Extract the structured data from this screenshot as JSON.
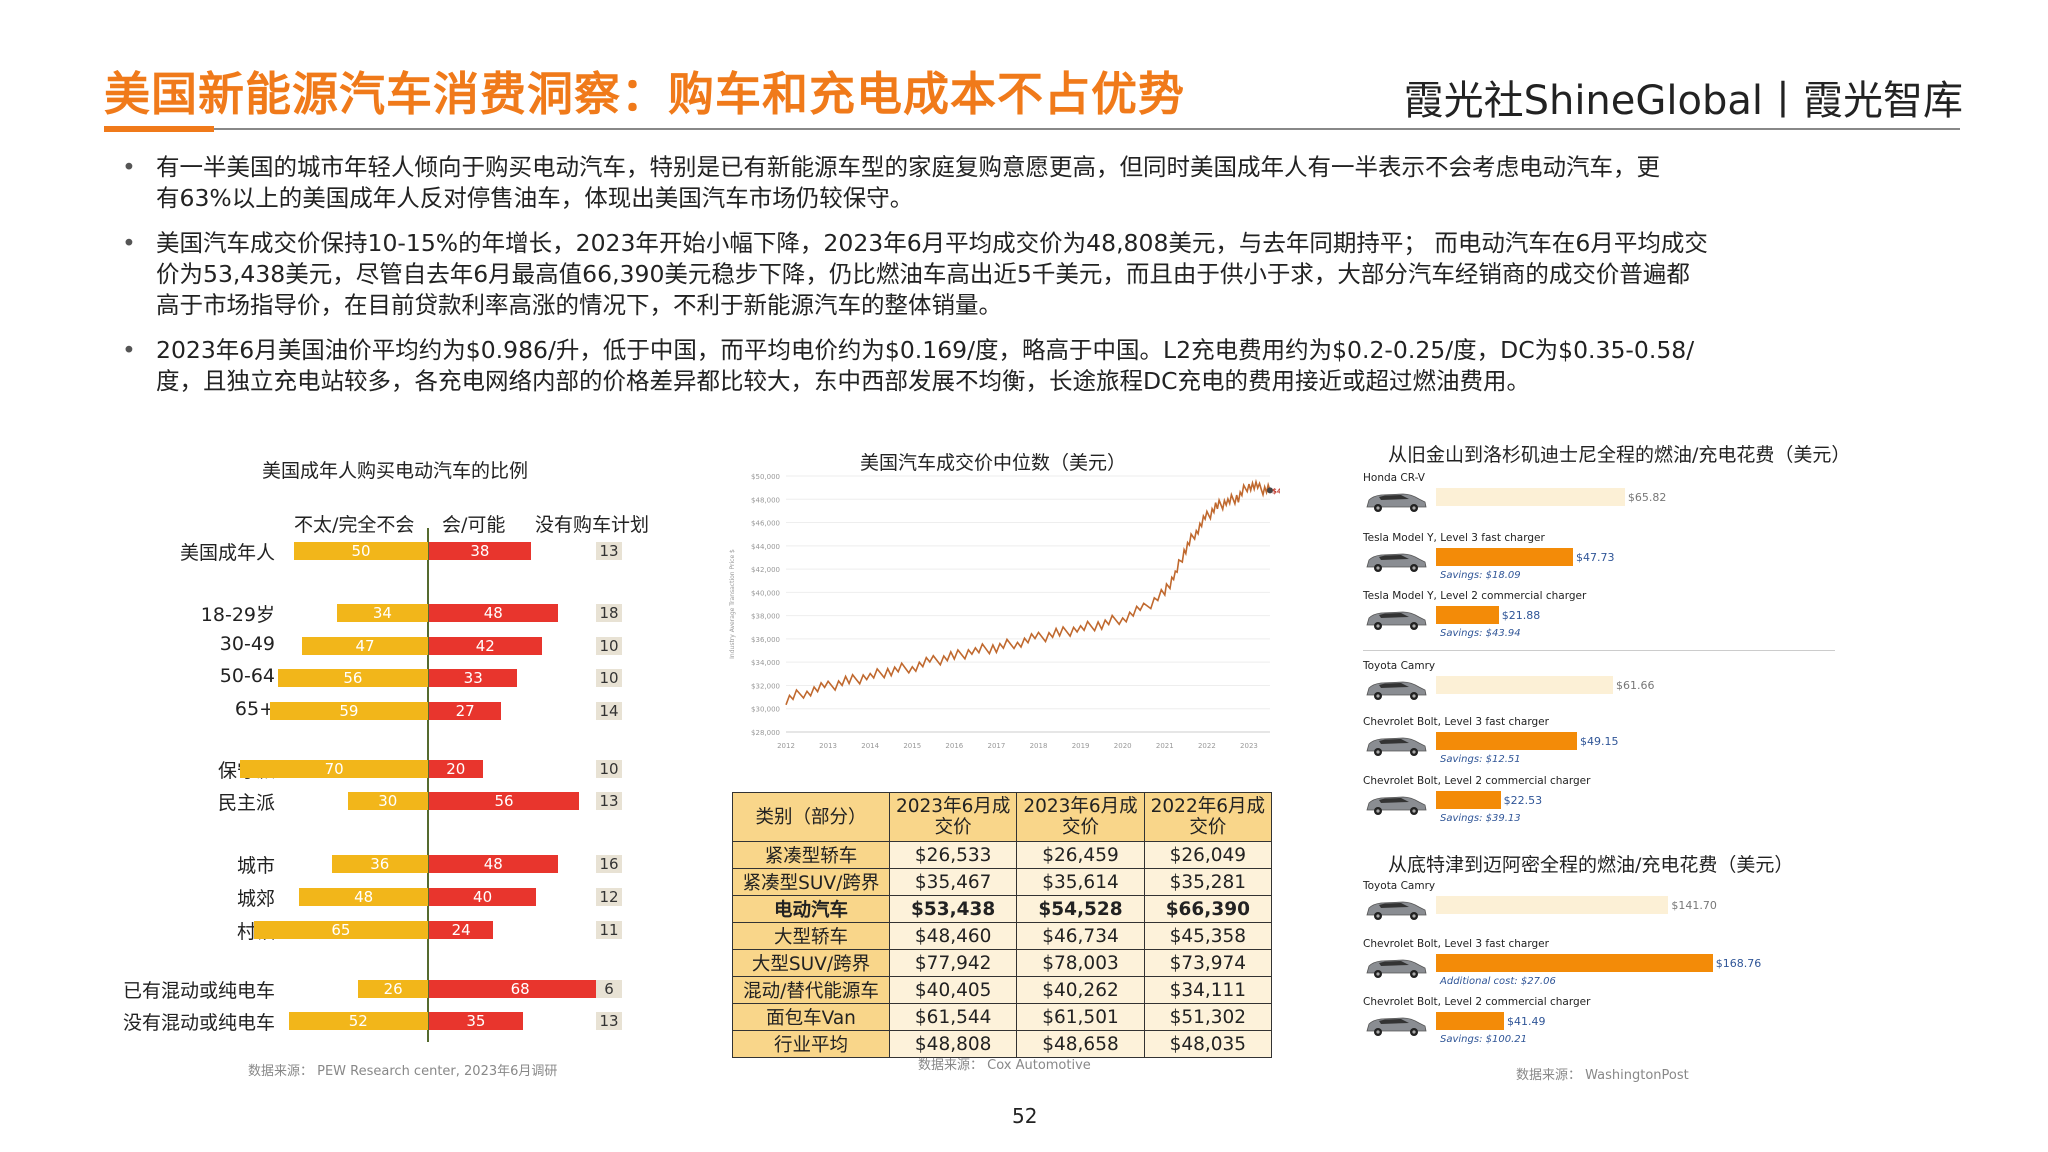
{
  "header": {
    "title": "美国新能源汽车消费洞察：购车和充电成本不占优势",
    "brand": "霞光社ShineGlobal丨霞光智库"
  },
  "bullets": [
    {
      "lines": [
        "有一半美国的城市年轻人倾向于购买电动汽车，特别是已有新能源车型的家庭复购意愿更高，但同时美国成年人有一半表示不会考虑电动汽车，更",
        "有63%以上的美国成年人反对停售油车，体现出美国汽车市场仍较保守。"
      ]
    },
    {
      "lines": [
        "美国汽车成交价保持10-15%的年增长，2023年开始小幅下降，2023年6月平均成交价为48,808美元，与去年同期持平； 而电动汽车在6月平均成交",
        "价为53,438美元，尽管自去年6月最高值66,390美元稳步下降，仍比燃油车高出近5千美元，而且由于供小于求，大部分汽车经销商的成交价普遍都",
        "高于市场指导价，在目前贷款利率高涨的情况下，不利于新能源汽车的整体销量。"
      ]
    },
    {
      "lines": [
        "2023年6月美国油价平均约为$0.986/升，低于中国，而平均电价约为$0.169/度，略高于中国。L2充电费用约为$0.2-0.25/度，DC为$0.35-0.58/",
        "度，且独立充电站较多，各充电网络内部的价格差异都比较大，东中西部发展不均衡，长途旅程DC充电的费用接近或超过燃油费用。"
      ]
    }
  ],
  "survey": {
    "title": "美国成年人购买电动汽车的比例",
    "col_no": "不太/完全不会",
    "col_yes": "会/可能",
    "col_none": "没有购车计划",
    "rows": [
      {
        "label": "美国成年人",
        "no": 50,
        "yes": 38,
        "none": 13
      },
      {
        "label": "18-29岁",
        "no": 34,
        "yes": 48,
        "none": 18
      },
      {
        "label": "30-49",
        "no": 47,
        "yes": 42,
        "none": 10
      },
      {
        "label": "50-64",
        "no": 56,
        "yes": 33,
        "none": 10
      },
      {
        "label": "65+",
        "no": 59,
        "yes": 27,
        "none": 14
      },
      {
        "label": "保守派",
        "no": 70,
        "yes": 20,
        "none": 10
      },
      {
        "label": "民主派",
        "no": 30,
        "yes": 56,
        "none": 13
      },
      {
        "label": "城市",
        "no": 36,
        "yes": 48,
        "none": 16
      },
      {
        "label": "城郊",
        "no": 48,
        "yes": 40,
        "none": 12
      },
      {
        "label": "村镇",
        "no": 65,
        "yes": 24,
        "none": 11
      },
      {
        "label": "已有混动或纯电车",
        "no": 26,
        "yes": 68,
        "none": 6
      },
      {
        "label": "没有混动或纯电车",
        "no": 52,
        "yes": 35,
        "none": 13
      }
    ],
    "source": "数据来源： PEW Research center, 2023年6月调研"
  },
  "chart_data": [
    {
      "type": "bar",
      "title": "美国成年人购买电动汽车的比例",
      "categories": [
        "美国成年人",
        "18-29岁",
        "30-49",
        "50-64",
        "65+",
        "保守派",
        "民主派",
        "城市",
        "城郊",
        "村镇",
        "已有混动或纯电车",
        "没有混动或纯电车"
      ],
      "series": [
        {
          "name": "不太/完全不会",
          "values": [
            50,
            34,
            47,
            56,
            59,
            70,
            30,
            36,
            48,
            65,
            26,
            52
          ]
        },
        {
          "name": "会/可能",
          "values": [
            38,
            48,
            42,
            33,
            27,
            20,
            56,
            48,
            40,
            24,
            68,
            35
          ]
        },
        {
          "name": "没有购车计划",
          "values": [
            13,
            18,
            10,
            10,
            14,
            10,
            13,
            16,
            12,
            11,
            6,
            13
          ]
        }
      ]
    },
    {
      "type": "line",
      "title": "美国汽车成交价中位数（美元）",
      "ylabel": "Industry Average Transaction Price $",
      "x_ticks": [
        "2012",
        "2013",
        "2014",
        "2015",
        "2016",
        "2017",
        "2018",
        "2019",
        "2020",
        "2021",
        "2022",
        "2023"
      ],
      "y_ticks": [
        "$50,000",
        "$48,000",
        "$46,000",
        "$44,000",
        "$42,000",
        "$40,000",
        "$38,000",
        "$36,000",
        "$34,000",
        "$32,000",
        "$30,000",
        "$28,000"
      ],
      "ylim": [
        28000,
        50000
      ],
      "end_label": "$48,763",
      "x": [
        2012.0,
        2012.5,
        2013.0,
        2013.5,
        2014.0,
        2014.5,
        2015.0,
        2015.5,
        2016.0,
        2016.5,
        2017.0,
        2017.5,
        2018.0,
        2018.5,
        2019.0,
        2019.5,
        2020.0,
        2020.5,
        2021.0,
        2021.25,
        2021.5,
        2021.75,
        2022.0,
        2022.25,
        2022.5,
        2022.75,
        2023.0,
        2023.25,
        2023.5
      ],
      "y": [
        30800,
        31500,
        31900,
        32400,
        32800,
        33300,
        33600,
        34100,
        34500,
        35000,
        35300,
        35700,
        36100,
        36500,
        36900,
        37300,
        37800,
        38600,
        40000,
        41600,
        43800,
        45300,
        46500,
        47400,
        47800,
        48200,
        49300,
        48900,
        48763
      ]
    },
    {
      "type": "bar",
      "title": "从旧金山到洛杉矶迪士尼全程的燃油/充电花费（美元）",
      "categories": [
        "Honda CR-V",
        "Tesla Model Y, Level 3 fast charger",
        "Tesla Model Y, Level 2 commercial charger",
        "Toyota Camry",
        "Chevrolet Bolt, Level 3 fast charger",
        "Chevrolet Bolt, Level 2 commercial charger"
      ],
      "values": [
        65.82,
        47.73,
        21.88,
        61.66,
        49.15,
        22.53
      ]
    },
    {
      "type": "bar",
      "title": "从底特津到迈阿密全程的燃油/充电花费（美元）",
      "categories": [
        "Toyota Camry",
        "Chevrolet Bolt, Level 3 fast charger",
        "Chevrolet Bolt, Level 2 commercial charger"
      ],
      "values": [
        141.7,
        168.76,
        41.49
      ]
    }
  ],
  "price_chart": {
    "title": "美国汽车成交价中位数（美元）",
    "source": "数据来源：  Cox Automotive"
  },
  "table": {
    "headers": [
      "类别（部分）",
      "2023年6月成交价",
      "2023年6月成交价",
      "2022年6月成交价"
    ],
    "rows": [
      [
        "紧凑型轿车",
        "$26,533",
        "$26,459",
        "$26,049"
      ],
      [
        "紧凑型SUV/跨界",
        "$35,467",
        "$35,614",
        "$35,281"
      ],
      [
        "电动汽车",
        "$53,438",
        "$54,528",
        "$66,390"
      ],
      [
        "大型轿车",
        "$48,460",
        "$46,734",
        "$45,358"
      ],
      [
        "大型SUV/跨界",
        "$77,942",
        "$78,003",
        "$73,974"
      ],
      [
        "混动/替代能源车",
        "$40,405",
        "$40,262",
        "$34,111"
      ],
      [
        "面包车Van",
        "$61,544",
        "$61,501",
        "$51,302"
      ],
      [
        "行业平均",
        "$48,808",
        "$48,658",
        "$48,035"
      ]
    ]
  },
  "fuel": {
    "title1": "从旧金山到洛杉矶迪士尼全程的燃油/充电花费（美元）",
    "title2": "从底特津到迈阿密全程的燃油/充电花费（美元）",
    "group1": [
      {
        "label": "Honda CR-V",
        "value_label": "$65.82",
        "value": 65.82,
        "kind": "gas",
        "note": ""
      },
      {
        "label": "Tesla Model Y, Level 3 fast charger",
        "value_label": "$47.73",
        "value": 47.73,
        "kind": "ev",
        "note": "Savings: $18.09"
      },
      {
        "label": "Tesla Model Y, Level 2 commercial charger",
        "value_label": "$21.88",
        "value": 21.88,
        "kind": "ev",
        "note": "Savings: $43.94"
      },
      {
        "label": "Toyota Camry",
        "value_label": "$61.66",
        "value": 61.66,
        "kind": "gas",
        "note": ""
      },
      {
        "label": "Chevrolet Bolt, Level 3 fast charger",
        "value_label": "$49.15",
        "value": 49.15,
        "kind": "ev",
        "note": "Savings: $12.51"
      },
      {
        "label": "Chevrolet Bolt, Level 2 commercial charger",
        "value_label": "$22.53",
        "value": 22.53,
        "kind": "ev",
        "note": "Savings: $39.13"
      }
    ],
    "group2": [
      {
        "label": "Toyota Camry",
        "value_label": "$141.70",
        "value": 141.7,
        "kind": "gas",
        "note": ""
      },
      {
        "label": "Chevrolet Bolt, Level 3 fast charger",
        "value_label": "$168.76",
        "value": 168.76,
        "kind": "ev",
        "note": "Additional cost: $27.06"
      },
      {
        "label": "Chevrolet Bolt, Level 2 commercial charger",
        "value_label": "$41.49",
        "value": 41.49,
        "kind": "ev",
        "note": "Savings: $100.21"
      }
    ],
    "source": "数据来源：  WashingtonPost"
  },
  "footer": {
    "page": "52"
  },
  "colors": {
    "accent": "#F07A1A",
    "yellow": "#F2B61A",
    "red": "#E8352D",
    "orange": "#F38B08",
    "line": "#C0692F"
  }
}
